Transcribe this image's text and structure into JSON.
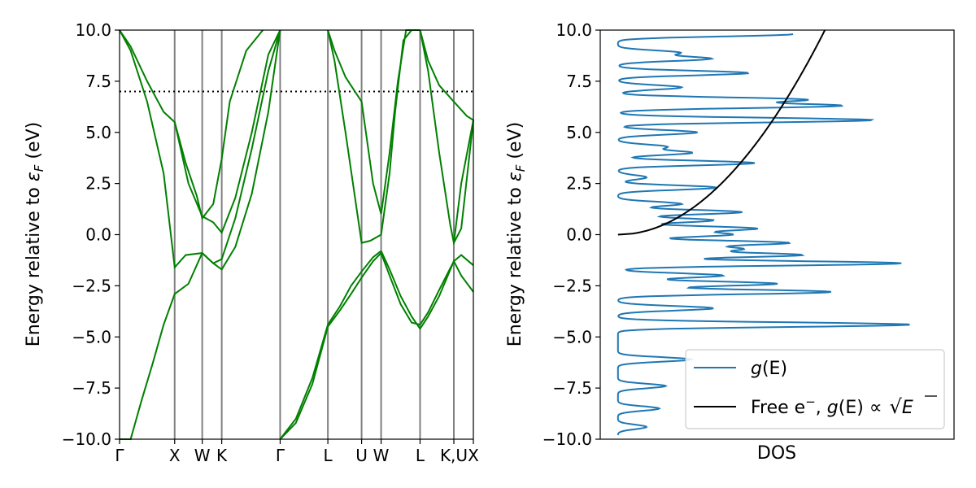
{
  "chart_data": [
    {
      "type": "line",
      "panel": "band-structure",
      "ylabel_main": "Energy relative to ",
      "ylabel_symbol": "ε",
      "ylabel_sub": "F",
      "ylabel_unit": "  (eV)",
      "ylim": [
        -10,
        10
      ],
      "yticks": [
        "10.0",
        "7.5",
        "5.0",
        "2.5",
        "0.0",
        "−2.5",
        "−5.0",
        "−7.5",
        "−10.0"
      ],
      "ytick_values": [
        10,
        7.5,
        5,
        2.5,
        0,
        -2.5,
        -5,
        -7.5,
        -10
      ],
      "k_points": [
        {
          "label": "Γ",
          "pos": 0.0
        },
        {
          "label": "X",
          "pos": 1.0
        },
        {
          "label": "W",
          "pos": 1.5
        },
        {
          "label": "K",
          "pos": 1.854
        },
        {
          "label": "Γ",
          "pos": 2.914
        },
        {
          "label": "L",
          "pos": 3.78
        },
        {
          "label": "U",
          "pos": 4.392
        },
        {
          "label": "W",
          "pos": 4.746
        },
        {
          "label": "L",
          "pos": 5.453
        },
        {
          "label": "K,U",
          "pos": 6.066
        },
        {
          "label": "X",
          "pos": 6.42
        }
      ],
      "band_color": "#008000",
      "fermi_level_line": 7.0,
      "bands": [
        {
          "x": [
            0.0,
            0.2,
            0.4,
            0.6,
            0.8,
            1.0,
            1.25,
            1.5,
            1.7,
            1.854,
            2.1,
            2.4,
            2.7,
            2.914
          ],
          "y": [
            -10.0,
            -10.0,
            -8.1,
            -6.3,
            -4.4,
            -2.9,
            -2.4,
            -0.9,
            -1.4,
            -1.2,
            0.8,
            4.2,
            8.0,
            10.0
          ]
        },
        {
          "x": [
            0.0,
            0.2,
            0.5,
            0.8,
            1.0,
            1.25,
            1.5,
            1.7,
            1.854,
            2.1,
            2.4,
            2.7,
            2.914
          ],
          "y": [
            10.0,
            9.2,
            7.5,
            6.0,
            5.5,
            2.5,
            0.9,
            0.6,
            0.1,
            1.8,
            5.0,
            8.8,
            10.0
          ]
        },
        {
          "x": [
            0.0,
            0.2,
            0.5,
            0.8,
            1.0,
            1.2,
            1.5,
            1.7,
            1.854,
            2.1,
            2.4,
            2.7,
            2.914
          ],
          "y": [
            10.0,
            9.0,
            6.5,
            3.0,
            -1.6,
            -1.0,
            -0.9,
            -1.4,
            -1.7,
            -0.6,
            2.0,
            6.0,
            10.0
          ]
        },
        {
          "x": [
            1.0,
            1.2,
            1.4,
            1.5,
            1.7,
            1.854,
            2.0,
            2.3,
            2.6
          ],
          "y": [
            5.5,
            3.5,
            1.9,
            0.8,
            1.5,
            3.7,
            6.5,
            9.0,
            10.0
          ]
        },
        {
          "x": [
            2.914,
            3.2,
            3.5,
            3.78,
            4.0,
            4.2,
            4.392,
            4.6,
            4.746
          ],
          "y": [
            -10.0,
            -9.0,
            -7.0,
            -4.4,
            -3.5,
            -2.5,
            -1.8,
            -1.1,
            -0.8
          ]
        },
        {
          "x": [
            2.914,
            3.2,
            3.5,
            3.78,
            4.0,
            4.2,
            4.392,
            4.6,
            4.746
          ],
          "y": [
            -10.0,
            -9.2,
            -7.3,
            -4.5,
            -3.7,
            -2.9,
            -2.1,
            -1.3,
            -0.9
          ]
        },
        {
          "x": [
            3.78,
            3.9,
            4.1,
            4.392,
            4.6,
            4.746
          ],
          "y": [
            10.0,
            9.0,
            7.7,
            6.5,
            2.5,
            1.0
          ]
        },
        {
          "x": [
            3.78,
            3.9,
            4.1,
            4.392,
            4.55,
            4.746
          ],
          "y": [
            10.0,
            8.5,
            5.0,
            -0.4,
            -0.3,
            0.0
          ]
        },
        {
          "x": [
            4.746,
            4.9,
            5.1,
            5.3,
            5.453,
            5.6,
            5.8,
            6.066,
            6.2,
            6.42
          ],
          "y": [
            -0.8,
            -1.7,
            -3.0,
            -4.0,
            -4.6,
            -4.0,
            -3.0,
            -1.3,
            -1.0,
            -1.5
          ]
        },
        {
          "x": [
            4.746,
            4.9,
            5.1,
            5.3,
            5.453,
            5.6,
            5.8,
            6.066,
            6.2,
            6.42
          ],
          "y": [
            -0.9,
            -2.0,
            -3.4,
            -4.3,
            -4.4,
            -3.8,
            -2.7,
            -1.3,
            -2.0,
            -2.8
          ]
        },
        {
          "x": [
            4.746,
            4.9,
            5.05,
            5.2,
            5.3,
            5.453
          ],
          "y": [
            1.0,
            4.0,
            7.5,
            10.0,
            10.0,
            10.0
          ]
        },
        {
          "x": [
            4.746,
            4.9,
            5.0,
            5.15,
            5.3
          ],
          "y": [
            0.0,
            3.0,
            6.0,
            9.5,
            10.0
          ]
        },
        {
          "x": [
            5.453,
            5.6,
            5.8,
            6.066,
            6.3,
            6.42
          ],
          "y": [
            10.0,
            8.5,
            7.3,
            6.5,
            5.8,
            5.6
          ]
        },
        {
          "x": [
            5.453,
            5.6,
            5.8,
            6.0,
            6.066,
            6.2,
            6.42
          ],
          "y": [
            10.0,
            8.0,
            4.0,
            0.5,
            -0.4,
            0.3,
            5.6
          ]
        },
        {
          "x": [
            6.066,
            6.2,
            6.42
          ],
          "y": [
            -0.4,
            2.5,
            5.6
          ]
        }
      ]
    },
    {
      "type": "line",
      "panel": "dos",
      "xlabel": "DOS",
      "ylabel_main": "Energy relative to ",
      "ylabel_symbol": "ε",
      "ylabel_sub": "F",
      "ylabel_unit": " (eV)",
      "ylim": [
        -10,
        10
      ],
      "xlim": [
        0,
        100
      ],
      "yticks": [
        "10.0",
        "7.5",
        "5.0",
        "2.5",
        "0.0",
        "−2.5",
        "−5.0",
        "−7.5",
        "−10.0"
      ],
      "ytick_values": [
        10,
        7.5,
        5,
        2.5,
        0,
        -2.5,
        -5,
        -7.5,
        -10
      ],
      "series": [
        {
          "name_main": "g(E)",
          "color": "#1f77b4",
          "peaks": [
            [
              9.8,
              60
            ],
            [
              8.9,
              24
            ],
            [
              8.6,
              34
            ],
            [
              7.9,
              46
            ],
            [
              7.2,
              25
            ],
            [
              6.6,
              63
            ],
            [
              6.3,
              74
            ],
            [
              5.6,
              85
            ],
            [
              5.0,
              30
            ],
            [
              4.3,
              20
            ],
            [
              4.0,
              28
            ],
            [
              3.5,
              48
            ],
            [
              2.8,
              14
            ],
            [
              2.3,
              36
            ],
            [
              1.5,
              25
            ],
            [
              1.1,
              44
            ],
            [
              0.7,
              35
            ],
            [
              0.3,
              48
            ],
            [
              0.0,
              40
            ],
            [
              -0.4,
              58
            ],
            [
              -0.7,
              42
            ],
            [
              -1.0,
              62
            ],
            [
              -1.4,
              94
            ],
            [
              -2.0,
              38
            ],
            [
              -2.4,
              55
            ],
            [
              -2.8,
              72
            ],
            [
              -3.6,
              35
            ],
            [
              -4.4,
              97
            ],
            [
              -6.1,
              28
            ],
            [
              -7.4,
              20
            ],
            [
              -8.5,
              18
            ],
            [
              -9.4,
              14
            ]
          ]
        },
        {
          "name_main": "Free e",
          "name_sup": "−",
          "name_suffix": ", ",
          "color": "#000000",
          "formula": "sqrt",
          "x_scale": 58.5
        }
      ],
      "legend": {
        "placement": "lower-right",
        "entry1_prefix": "g",
        "entry1_arg": "(E)",
        "entry2_prefix": "Free e",
        "entry2_sup": "−",
        "entry2_mid": ", ",
        "entry2_g": "g",
        "entry2_arg": "(E) ∝ ",
        "entry2_root": "E"
      }
    }
  ]
}
